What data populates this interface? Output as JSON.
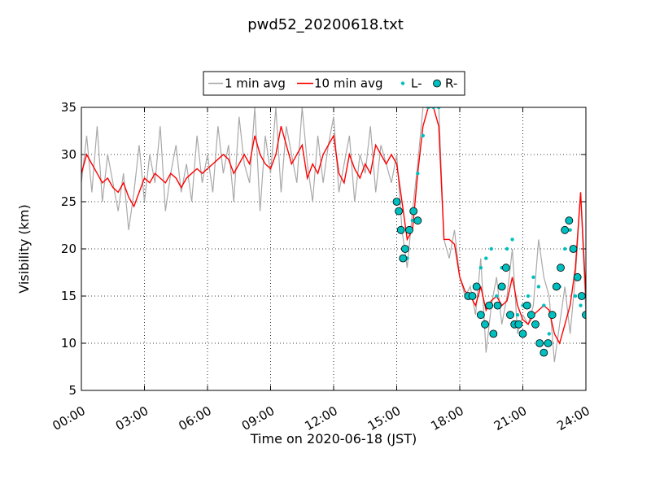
{
  "chart_data": {
    "type": "line",
    "title": "pwd52_20200618.txt",
    "xlabel": "Time on 2020-06-18 (JST)",
    "ylabel": "Visibility (km)",
    "xlim_hours": [
      0,
      24
    ],
    "ylim": [
      5,
      35
    ],
    "xticks": [
      "00:00",
      "03:00",
      "06:00",
      "09:00",
      "12:00",
      "15:00",
      "18:00",
      "21:00",
      "24:00"
    ],
    "yticks": [
      5,
      10,
      15,
      20,
      25,
      30,
      35
    ],
    "grid": true,
    "legend_position": "top-center",
    "series": [
      {
        "name": "1 min avg",
        "color": "#a9a9a9",
        "x_hours": [
          0.0,
          0.25,
          0.5,
          0.75,
          1.0,
          1.25,
          1.5,
          1.75,
          2.0,
          2.25,
          2.5,
          2.75,
          3.0,
          3.25,
          3.5,
          3.75,
          4.0,
          4.25,
          4.5,
          4.75,
          5.0,
          5.25,
          5.5,
          5.75,
          6.0,
          6.25,
          6.5,
          6.75,
          7.0,
          7.25,
          7.5,
          7.75,
          8.0,
          8.25,
          8.5,
          8.75,
          9.0,
          9.25,
          9.5,
          9.75,
          10.0,
          10.25,
          10.5,
          10.75,
          11.0,
          11.25,
          11.5,
          11.75,
          12.0,
          12.25,
          12.5,
          12.75,
          13.0,
          13.25,
          13.5,
          13.75,
          14.0,
          14.25,
          14.5,
          14.75,
          15.0,
          15.25,
          15.5,
          15.75,
          16.0,
          16.25,
          16.5,
          16.75,
          17.0,
          17.25,
          17.5,
          17.75,
          18.0,
          18.25,
          18.5,
          18.75,
          19.0,
          19.25,
          19.5,
          19.75,
          20.0,
          20.25,
          20.5,
          20.75,
          21.0,
          21.25,
          21.5,
          21.75,
          22.0,
          22.25,
          22.5,
          22.75,
          23.0,
          23.25,
          23.5,
          23.75,
          24.0
        ],
        "y": [
          27,
          32,
          26,
          33,
          25,
          30,
          27,
          24,
          28,
          22,
          26,
          31,
          25,
          30,
          27,
          33,
          24,
          28,
          31,
          26,
          29,
          25,
          32,
          27,
          30,
          26,
          33,
          28,
          31,
          25,
          34,
          29,
          27,
          35,
          24,
          32,
          28,
          35,
          26,
          33,
          30,
          27,
          35,
          29,
          25,
          32,
          27,
          31,
          34,
          26,
          29,
          32,
          25,
          30,
          28,
          33,
          26,
          31,
          29,
          27,
          30,
          22,
          18,
          24,
          29,
          35,
          35,
          35,
          35,
          21,
          19,
          22,
          17,
          15,
          16,
          13,
          19,
          9,
          14,
          17,
          12,
          15,
          20,
          11,
          13,
          12,
          14,
          21,
          17,
          15,
          8,
          12,
          16,
          11,
          17,
          26,
          13
        ]
      },
      {
        "name": "10 min avg",
        "color": "#ff0000",
        "x_hours": [
          0.0,
          0.25,
          0.5,
          0.75,
          1.0,
          1.25,
          1.5,
          1.75,
          2.0,
          2.25,
          2.5,
          2.75,
          3.0,
          3.25,
          3.5,
          3.75,
          4.0,
          4.25,
          4.5,
          4.75,
          5.0,
          5.25,
          5.5,
          5.75,
          6.0,
          6.25,
          6.5,
          6.75,
          7.0,
          7.25,
          7.5,
          7.75,
          8.0,
          8.25,
          8.5,
          8.75,
          9.0,
          9.25,
          9.5,
          9.75,
          10.0,
          10.25,
          10.5,
          10.75,
          11.0,
          11.25,
          11.5,
          11.75,
          12.0,
          12.25,
          12.5,
          12.75,
          13.0,
          13.25,
          13.5,
          13.75,
          14.0,
          14.25,
          14.5,
          14.75,
          15.0,
          15.25,
          15.5,
          15.75,
          16.0,
          16.25,
          16.5,
          16.75,
          17.0,
          17.25,
          17.5,
          17.75,
          18.0,
          18.25,
          18.5,
          18.75,
          19.0,
          19.25,
          19.5,
          19.75,
          20.0,
          20.25,
          20.5,
          20.75,
          21.0,
          21.25,
          21.5,
          21.75,
          22.0,
          22.25,
          22.5,
          22.75,
          23.0,
          23.25,
          23.5,
          23.75,
          24.0
        ],
        "y": [
          28,
          30,
          29,
          28,
          27,
          27.5,
          26.5,
          26,
          27,
          25.5,
          24.5,
          26,
          27.5,
          27,
          28,
          27.5,
          27,
          28,
          27.5,
          26.5,
          27.5,
          28,
          28.5,
          28,
          28.5,
          29,
          29.5,
          30,
          29.5,
          28,
          29,
          30,
          29,
          32,
          30,
          29,
          28.5,
          30,
          33,
          31,
          29,
          30,
          31,
          27.5,
          29,
          28,
          30,
          31,
          32,
          28,
          27,
          30,
          28.5,
          27.5,
          29,
          28,
          31,
          30,
          29,
          30,
          29,
          25,
          21,
          22,
          28,
          33,
          35,
          35,
          33,
          21,
          21,
          20.5,
          17,
          15.5,
          15,
          14,
          16,
          13.5,
          14.5,
          15,
          14,
          14.5,
          17,
          14,
          12.5,
          12,
          13,
          13.5,
          14,
          13.5,
          11,
          10,
          12,
          14,
          18,
          26,
          15
        ]
      },
      {
        "name": "L-",
        "color": "#00bfbf",
        "x_hours": [
          15.0,
          15.25,
          15.5,
          15.75,
          16.0,
          16.25,
          16.5,
          16.75,
          17.0,
          19.0,
          19.25,
          19.5,
          19.75,
          20.0,
          20.25,
          20.5,
          20.75,
          21.0,
          21.25,
          21.5,
          21.75,
          22.0,
          22.25,
          22.5,
          22.75,
          23.0,
          23.25,
          23.5,
          23.75
        ],
        "y": [
          24,
          22,
          19,
          23,
          28,
          32,
          35,
          35,
          35,
          18,
          19,
          20,
          15,
          18,
          20,
          21,
          13,
          14,
          15,
          17,
          16,
          14,
          11,
          13,
          16,
          20,
          22,
          15,
          14
        ]
      },
      {
        "name": "R-",
        "color": "#00bfbf",
        "x_hours": [
          15.0,
          15.1,
          15.2,
          15.3,
          15.4,
          15.6,
          15.8,
          16.0,
          18.4,
          18.6,
          18.8,
          19.0,
          19.2,
          19.4,
          19.6,
          19.8,
          20.0,
          20.2,
          20.4,
          20.6,
          20.8,
          21.0,
          21.2,
          21.4,
          21.6,
          21.8,
          22.0,
          22.2,
          22.4,
          22.6,
          22.8,
          23.0,
          23.2,
          23.4,
          23.6,
          23.8,
          24.0
        ],
        "y": [
          25,
          24,
          22,
          19,
          20,
          22,
          24,
          23,
          15,
          15,
          16,
          13,
          12,
          14,
          11,
          14,
          16,
          18,
          13,
          12,
          12,
          11,
          14,
          13,
          12,
          10,
          9,
          10,
          13,
          16,
          18,
          22,
          23,
          20,
          17,
          15,
          13
        ]
      }
    ]
  }
}
